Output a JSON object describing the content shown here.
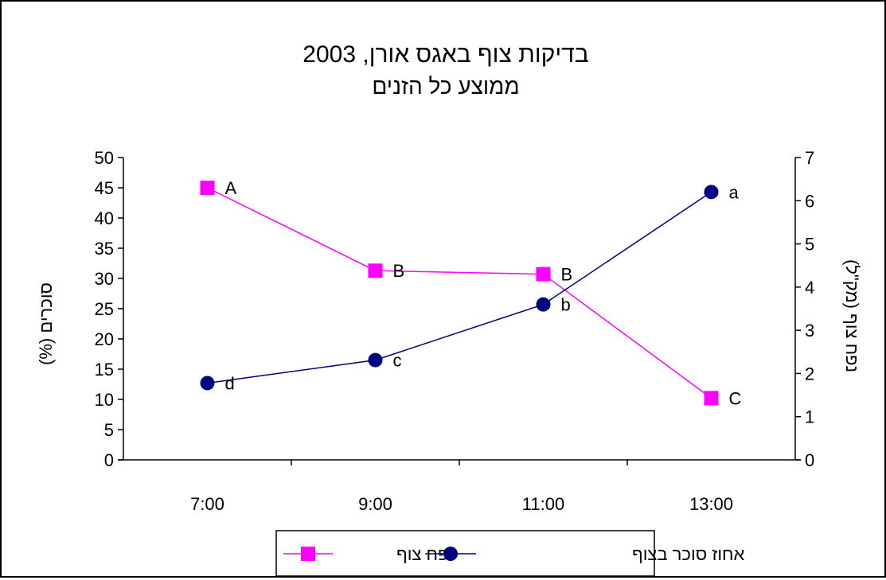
{
  "chart_data": {
    "type": "line",
    "title": "בדיקות צוף באגס אורן, 2003",
    "subtitle": "ממוצע כל הזנים",
    "categories": [
      "7:00",
      "9:00",
      "11:00",
      "13:00"
    ],
    "ylabel_left": "סוכרים (%)",
    "ylabel_right": "נפח צוף (מק\"ל)",
    "ylim_left": [
      0,
      50
    ],
    "yticks_left": [
      0,
      5,
      10,
      15,
      20,
      25,
      30,
      35,
      40,
      45,
      50
    ],
    "ylim_right": [
      0,
      7
    ],
    "yticks_right": [
      0,
      1,
      2,
      3,
      4,
      5,
      6,
      7
    ],
    "grid": false,
    "legend_position": "bottom",
    "series": [
      {
        "name": "נפח צוף",
        "axis": "right",
        "marker": "square",
        "color": "#ff00ff",
        "values": [
          6.3,
          4.38,
          4.3,
          1.43
        ],
        "labels": [
          "A",
          "B",
          "B",
          "C"
        ]
      },
      {
        "name": "אחוז סוכר בצוף",
        "axis": "left",
        "marker": "circle",
        "color": "#000080",
        "values": [
          12.7,
          16.5,
          25.7,
          44.3
        ],
        "labels": [
          "d",
          "c",
          "b",
          "a"
        ]
      }
    ]
  }
}
